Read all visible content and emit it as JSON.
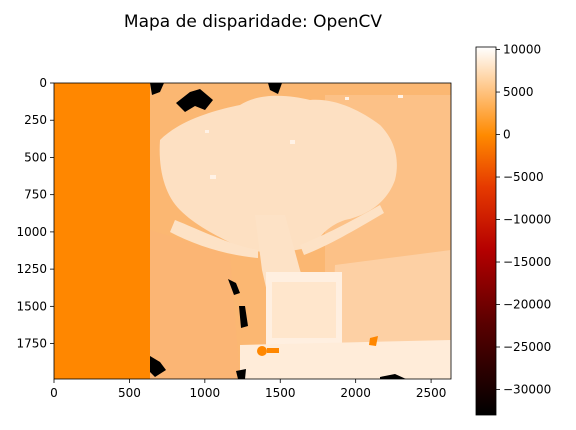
{
  "chart_data": {
    "type": "heatmap",
    "title": "Mapa de disparidade: OpenCV",
    "xlabel": "",
    "ylabel": "",
    "x_range": [
      0,
      2632
    ],
    "y_range": [
      0,
      1988
    ],
    "y_inverted": true,
    "x_ticks": [
      0,
      500,
      1000,
      1500,
      2000,
      2500
    ],
    "x_tick_labels": [
      "0",
      "500",
      "1000",
      "1500",
      "2000",
      "2500"
    ],
    "y_ticks": [
      0,
      250,
      500,
      750,
      1000,
      1250,
      1500,
      1750
    ],
    "y_tick_labels": [
      "0",
      "250",
      "500",
      "750",
      "1000",
      "1250",
      "1500",
      "1750"
    ],
    "colormap": "gist_heat",
    "colorbar": {
      "range": [
        -33000,
        10300
      ],
      "ticks": [
        10000,
        5000,
        0,
        -5000,
        -10000,
        -15000,
        -20000,
        -25000,
        -30000
      ],
      "tick_labels": [
        "10000",
        "5000",
        "0",
        "−5000",
        "−10000",
        "−15000",
        "−20000",
        "−25000",
        "−30000"
      ]
    },
    "regions": [
      {
        "name": "invalid-left-band",
        "x": [
          0,
          640
        ],
        "y": [
          0,
          1988
        ],
        "value": 0
      },
      {
        "name": "background",
        "x": [
          640,
          2632
        ],
        "y": [
          0,
          1988
        ],
        "value": 4500
      },
      {
        "name": "upper-right-wall",
        "x": [
          1900,
          2632
        ],
        "y": [
          100,
          1300
        ],
        "value": 5200
      },
      {
        "name": "tree-canopy",
        "x": [
          700,
          2050
        ],
        "y": [
          50,
          1100
        ],
        "value": 8000
      },
      {
        "name": "tree-trunk",
        "x": [
          1100,
          1650
        ],
        "y": [
          700,
          1500
        ],
        "value": 7800
      },
      {
        "name": "pot",
        "x": [
          1420,
          1900
        ],
        "y": [
          1280,
          1988
        ],
        "value": 9000
      },
      {
        "name": "lower-right-floor",
        "x": [
          1900,
          2632
        ],
        "y": [
          1300,
          1988
        ],
        "value": 7600
      },
      {
        "name": "invalid-black-patches",
        "value": -33000
      }
    ]
  },
  "colors": {
    "invalid": "#ff8700",
    "background": "#fdba78",
    "wall": "#fdc58f",
    "tree": "#fee6cd",
    "pot": "#fff2e6",
    "black": "#000000"
  }
}
